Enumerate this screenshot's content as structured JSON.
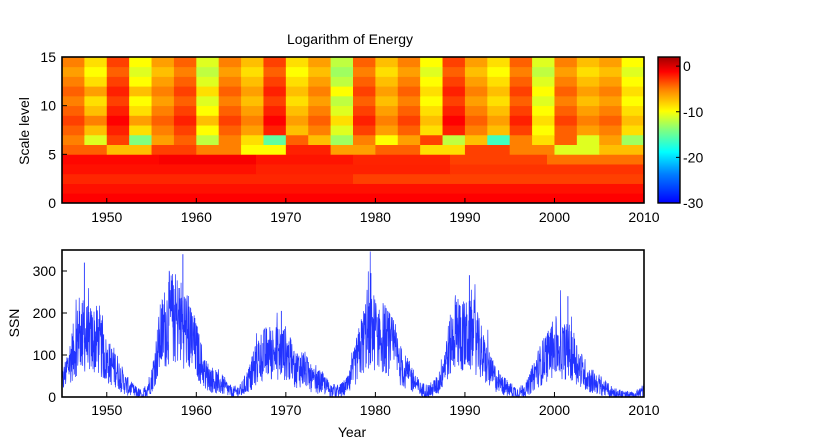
{
  "chart_data": [
    {
      "type": "heatmap",
      "title": "Logarithm of Energy",
      "xlabel": "",
      "ylabel": "Scale level",
      "xlim": [
        1945,
        2010
      ],
      "ylim": [
        0,
        15
      ],
      "xticks": [
        1950,
        1960,
        1970,
        1980,
        1990,
        2000,
        2010
      ],
      "yticks": [
        0,
        5,
        10,
        15
      ],
      "colorbar": {
        "range": [
          -30,
          2
        ],
        "ticks": [
          0,
          -10,
          -20,
          -30
        ],
        "colormap": "jet"
      },
      "grid": false,
      "levels": [
        {
          "level": 1,
          "values": [
            -2
          ]
        },
        {
          "level": 2,
          "values": [
            -2.5
          ]
        },
        {
          "level": 3,
          "values": [
            -3.2,
            -4.0
          ]
        },
        {
          "level": 4,
          "values": [
            -2.5,
            -3.0,
            -3.6
          ]
        },
        {
          "level": 5,
          "values": [
            -2.2,
            -1.8,
            -2.6,
            -3.1,
            -4.0,
            -5.5
          ]
        },
        {
          "level": 6,
          "values": [
            -5,
            -8,
            -4,
            -6,
            -10,
            -3,
            -7,
            -5,
            -9,
            -4,
            -6,
            -11,
            -8
          ]
        },
        {
          "level": 7,
          "values": [
            -6,
            -11,
            -4,
            -14,
            -7,
            -5,
            -12,
            -6,
            -9,
            -15,
            -5,
            -8,
            -13,
            -6,
            -10,
            -7,
            -4,
            -12,
            -8,
            -16,
            -6,
            -9,
            -5,
            -11,
            -7,
            -13
          ]
        },
        {
          "level": 8,
          "values": [
            -5,
            -8,
            -3,
            -9,
            -6,
            -4,
            -10,
            -5,
            -7,
            -3,
            -8,
            -6,
            -11,
            -4,
            -7,
            -5,
            -9,
            -3,
            -6,
            -8,
            -4,
            -10,
            -5,
            -7,
            -6,
            -9
          ]
        },
        {
          "level": 9,
          "values": [
            -4,
            -6,
            -2,
            -7,
            -5,
            -3,
            -8,
            -4,
            -6,
            -2,
            -7,
            -5,
            -9,
            -3,
            -6,
            -4,
            -8,
            -2,
            -5,
            -7,
            -3,
            -9,
            -4,
            -6,
            -5,
            -8
          ]
        },
        {
          "level": 10,
          "values": [
            -5,
            -8,
            -3,
            -9,
            -6,
            -4,
            -10,
            -5,
            -7,
            -3,
            -8,
            -6,
            -11,
            -4,
            -7,
            -5,
            -9,
            -3,
            -6,
            -8,
            -4,
            -10,
            -5,
            -7,
            -6,
            -9
          ]
        },
        {
          "level": 11,
          "values": [
            -6,
            -9,
            -4,
            -10,
            -7,
            -5,
            -11,
            -6,
            -8,
            -4,
            -9,
            -7,
            -12,
            -5,
            -8,
            -6,
            -10,
            -4,
            -7,
            -9,
            -5,
            -11,
            -6,
            -8,
            -7,
            -10
          ]
        },
        {
          "level": 12,
          "values": [
            -5,
            -7,
            -3,
            -8,
            -6,
            -4,
            -9,
            -5,
            -7,
            -3,
            -8,
            -6,
            -10,
            -4,
            -7,
            -5,
            -9,
            -3,
            -6,
            -8,
            -4,
            -10,
            -5,
            -7,
            -6,
            -9
          ]
        },
        {
          "level": 13,
          "values": [
            -6,
            -9,
            -4,
            -10,
            -7,
            -5,
            -11,
            -6,
            -8,
            -4,
            -9,
            -7,
            -12,
            -5,
            -8,
            -6,
            -10,
            -4,
            -7,
            -9,
            -5,
            -11,
            -6,
            -8,
            -7,
            -10
          ]
        },
        {
          "level": 14,
          "values": [
            -7,
            -10,
            -5,
            -11,
            -8,
            -6,
            -12,
            -7,
            -9,
            -5,
            -10,
            -8,
            -13,
            -6,
            -9,
            -7,
            -11,
            -5,
            -8,
            -10,
            -6,
            -12,
            -7,
            -9,
            -8,
            -11
          ]
        },
        {
          "level": 15,
          "values": [
            -6,
            -9,
            -4,
            -10,
            -7,
            -5,
            -11,
            -6,
            -8,
            -4,
            -9,
            -7,
            -12,
            -5,
            -8,
            -6,
            -10,
            -4,
            -7,
            -9,
            -5,
            -11,
            -6,
            -8,
            -7,
            -10
          ]
        }
      ]
    },
    {
      "type": "line",
      "title": "",
      "xlabel": "Year",
      "ylabel": "SSN",
      "xlim": [
        1945,
        2010
      ],
      "ylim": [
        0,
        350
      ],
      "xticks": [
        1950,
        1960,
        1970,
        1980,
        1990,
        2000,
        2010
      ],
      "yticks": [
        0,
        100,
        200,
        300
      ],
      "grid": false,
      "series": [
        {
          "color": "#2233ff",
          "x": [
            1945,
            1946,
            1947,
            1948,
            1949,
            1950,
            1951,
            1952,
            1953,
            1954,
            1955,
            1956,
            1957,
            1958,
            1959,
            1960,
            1961,
            1962,
            1963,
            1964,
            1965,
            1966,
            1967,
            1968,
            1969,
            1970,
            1971,
            1972,
            1973,
            1974,
            1975,
            1976,
            1977,
            1978,
            1979,
            1980,
            1981,
            1982,
            1983,
            1984,
            1985,
            1986,
            1987,
            1988,
            1989,
            1990,
            1991,
            1992,
            1993,
            1994,
            1995,
            1996,
            1997,
            1998,
            1999,
            2000,
            2001,
            2002,
            2003,
            2004,
            2005,
            2006,
            2007,
            2008,
            2009,
            2010
          ],
          "values": [
            33,
            93,
            151,
            136,
            135,
            84,
            69,
            31,
            14,
            4,
            38,
            142,
            190,
            185,
            159,
            112,
            54,
            38,
            28,
            10,
            15,
            47,
            94,
            106,
            106,
            105,
            67,
            69,
            38,
            35,
            16,
            13,
            28,
            93,
            155,
            155,
            140,
            116,
            67,
            46,
            18,
            14,
            29,
            100,
            158,
            142,
            146,
            95,
            55,
            30,
            18,
            9,
            22,
            64,
            93,
            120,
            111,
            104,
            64,
            40,
            30,
            15,
            8,
            3,
            3,
            16
          ],
          "peak_annotations": [
            {
              "x": 1947.5,
              "y": 320
            },
            {
              "x": 1958.5,
              "y": 340
            },
            {
              "x": 1969.5,
              "y": 205
            },
            {
              "x": 1979.5,
              "y": 295
            },
            {
              "x": 1990.5,
              "y": 290
            },
            {
              "x": 2001.5,
              "y": 240
            }
          ]
        }
      ]
    }
  ]
}
